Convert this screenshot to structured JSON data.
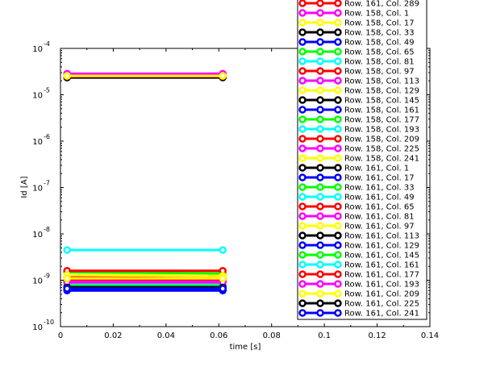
{
  "chart_data": {
    "type": "line",
    "title": "",
    "xlabel": "time [s]",
    "ylabel": "Id [A]",
    "xlim": [
      0,
      0.14
    ],
    "ylim": [
      1e-10,
      0.0001
    ],
    "yscale": "log",
    "xticks": [
      "0",
      "0.02",
      "0.04",
      "0.06",
      "0.08",
      "0.1",
      "0.12",
      "0.14"
    ],
    "yticks": [
      {
        "base": "10",
        "exp": "-10"
      },
      {
        "base": "10",
        "exp": "-9"
      },
      {
        "base": "10",
        "exp": "-8"
      },
      {
        "base": "10",
        "exp": "-7"
      },
      {
        "base": "10",
        "exp": "-6"
      },
      {
        "base": "10",
        "exp": "-5"
      },
      {
        "base": "10",
        "exp": "-4"
      }
    ],
    "grid": false,
    "legend_position": "right",
    "x": [
      0.0025,
      0.0615
    ],
    "series": [
      {
        "name": "Row. 161, Col. 289",
        "color": "#ff0000",
        "values": [
          1.15e-09,
          1.1e-09
        ]
      },
      {
        "name": "Row. 158, Col. 1",
        "color": "#ff00ff",
        "values": [
          2.8e-05,
          2.8e-05
        ]
      },
      {
        "name": "Row. 158, Col. 17",
        "color": "#ffff00",
        "values": [
          2.6e-05,
          2.6e-05
        ]
      },
      {
        "name": "Row. 158, Col. 33",
        "color": "#000000",
        "values": [
          2.4e-05,
          2.4e-05
        ]
      },
      {
        "name": "Row. 158, Col. 49",
        "color": "#0000ff",
        "values": [
          2.5e-05,
          2.5e-05
        ]
      },
      {
        "name": "Row. 158, Col. 65",
        "color": "#00ff00",
        "values": [
          2.55e-05,
          2.55e-05
        ]
      },
      {
        "name": "Row. 158, Col. 81",
        "color": "#00ffff",
        "values": [
          2.7e-05,
          2.7e-05
        ]
      },
      {
        "name": "Row. 158, Col. 97",
        "color": "#ff0000",
        "values": [
          2.45e-05,
          2.45e-05
        ]
      },
      {
        "name": "Row. 158, Col. 113",
        "color": "#ff00ff",
        "values": [
          2.75e-05,
          2.75e-05
        ]
      },
      {
        "name": "Row. 158, Col. 129",
        "color": "#ffff00",
        "values": [
          2.65e-05,
          2.65e-05
        ]
      },
      {
        "name": "Row. 158, Col. 145",
        "color": "#000000",
        "values": [
          2.35e-05,
          2.35e-05
        ]
      },
      {
        "name": "Row. 158, Col. 161",
        "color": "#0000ff",
        "values": [
          2.5e-05,
          2.5e-05
        ]
      },
      {
        "name": "Row. 158, Col. 177",
        "color": "#00ff00",
        "values": [
          2.6e-05,
          2.6e-05
        ]
      },
      {
        "name": "Row. 158, Col. 193",
        "color": "#00ffff",
        "values": [
          2.7e-05,
          2.7e-05
        ]
      },
      {
        "name": "Row. 158, Col. 209",
        "color": "#ff0000",
        "values": [
          2.5e-05,
          2.5e-05
        ]
      },
      {
        "name": "Row. 158, Col. 225",
        "color": "#ff00ff",
        "values": [
          2.85e-05,
          2.85e-05
        ]
      },
      {
        "name": "Row. 158, Col. 241",
        "color": "#ffff00",
        "values": [
          2.55e-05,
          2.55e-05
        ]
      },
      {
        "name": "Row. 161, Col. 1",
        "color": "#000000",
        "values": [
          6.5e-10,
          6.5e-10
        ]
      },
      {
        "name": "Row. 161, Col. 17",
        "color": "#0000ff",
        "values": [
          6e-10,
          6e-10
        ]
      },
      {
        "name": "Row. 161, Col. 33",
        "color": "#00ff00",
        "values": [
          1.5e-09,
          1.4e-09
        ]
      },
      {
        "name": "Row. 161, Col. 49",
        "color": "#00ffff",
        "values": [
          4.5e-09,
          4.5e-09
        ]
      },
      {
        "name": "Row. 161, Col. 65",
        "color": "#ff0000",
        "values": [
          1.6e-09,
          1.6e-09
        ]
      },
      {
        "name": "Row. 161, Col. 81",
        "color": "#ff00ff",
        "values": [
          9.5e-10,
          9.5e-10
        ]
      },
      {
        "name": "Row. 161, Col. 97",
        "color": "#ffff00",
        "values": [
          1.3e-09,
          1.25e-09
        ]
      },
      {
        "name": "Row. 161, Col. 113",
        "color": "#000000",
        "values": [
          7.5e-10,
          7.5e-10
        ]
      },
      {
        "name": "Row. 161, Col. 129",
        "color": "#0000ff",
        "values": [
          6.2e-10,
          6.2e-10
        ]
      },
      {
        "name": "Row. 161, Col. 145",
        "color": "#00ff00",
        "values": [
          8e-10,
          8e-10
        ]
      },
      {
        "name": "Row. 161, Col. 161",
        "color": "#00ffff",
        "values": [
          8.5e-10,
          8.5e-10
        ]
      },
      {
        "name": "Row. 161, Col. 177",
        "color": "#ff0000",
        "values": [
          1.05e-09,
          1.05e-09
        ]
      },
      {
        "name": "Row. 161, Col. 193",
        "color": "#ff00ff",
        "values": [
          9e-10,
          9e-10
        ]
      },
      {
        "name": "Row. 161, Col. 209",
        "color": "#ffff00",
        "values": [
          1.1e-09,
          1.1e-09
        ]
      },
      {
        "name": "Row. 161, Col. 225",
        "color": "#000000",
        "values": [
          7e-10,
          7e-10
        ]
      },
      {
        "name": "Row. 161, Col. 241",
        "color": "#0000ff",
        "values": [
          6.6e-10,
          6.6e-10
        ]
      }
    ]
  }
}
